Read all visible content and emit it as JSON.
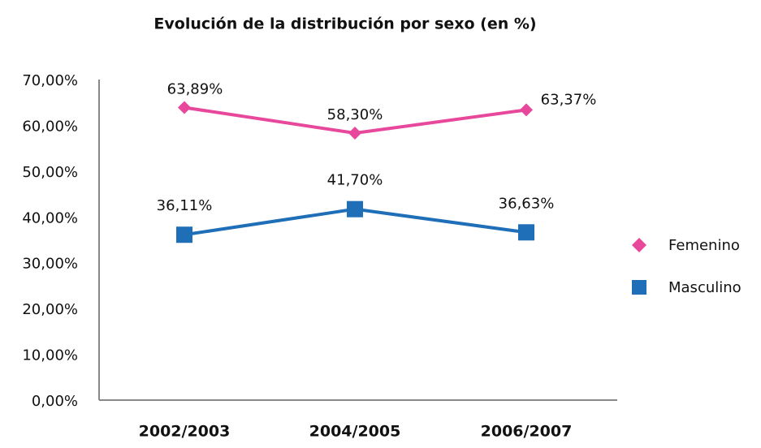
{
  "chart_data": {
    "type": "line",
    "title": "Evolución de la distribución por sexo (en %)",
    "categories": [
      "2002/2003",
      "2004/2005",
      "2006/2007"
    ],
    "series": [
      {
        "name": "Femenino",
        "color": "#e8489b",
        "marker": "diamond",
        "values": [
          63.89,
          58.3,
          63.37
        ],
        "value_labels": [
          "63,89%",
          "58,30%",
          "63,37%"
        ]
      },
      {
        "name": "Masculino",
        "color": "#1f6fb8",
        "marker": "square",
        "values": [
          36.11,
          41.7,
          36.63
        ],
        "value_labels": [
          "36,11%",
          "41,70%",
          "36,63%"
        ]
      }
    ],
    "ylim": [
      0,
      70
    ],
    "yticks": [
      {
        "value": 0,
        "label": "0,00%"
      },
      {
        "value": 10,
        "label": "10,00%"
      },
      {
        "value": 20,
        "label": "20,00%"
      },
      {
        "value": 30,
        "label": "30,00%"
      },
      {
        "value": 40,
        "label": "40,00%"
      },
      {
        "value": 50,
        "label": "50,00%"
      },
      {
        "value": 60,
        "label": "60,00%"
      },
      {
        "value": 70,
        "label": "70,00%"
      }
    ],
    "grid": false,
    "legend": "right"
  }
}
